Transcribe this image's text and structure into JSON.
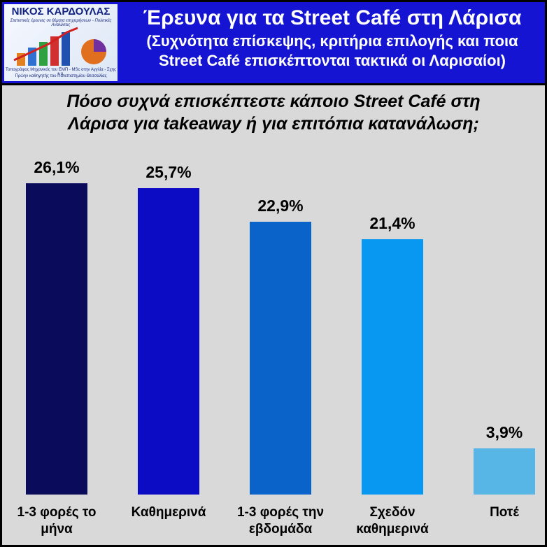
{
  "header": {
    "logo": {
      "name": "ΝΙΚΟΣ ΚΑΡΔΟΥΛΑΣ",
      "tagline": "Στατιστικές έρευνες σε θέματα επιχειρήσεων - Πολιτικές Αναλύσεις",
      "credentials": [
        "Τοπογράφος Μηχανικός του ΕΜΠ - MSc στην Αγγλία - Σχης ε.α.",
        "Πρώην καθηγητής του Πανεπιστημίου Θεσσαλίας"
      ]
    },
    "title": "Έρευνα για τα Street Café στη Λάρισα",
    "subtitle_lines": [
      "(Συχνότητα επίσκεψης, κριτήρια επιλογής και ποια",
      "Street Café επισκέπτονται τακτικά οι Λαρισαίοι)"
    ]
  },
  "chart_data": {
    "type": "bar",
    "title": "Πόσο συχνά επισκέπτεστε κάποιο Street Café στη Λάρισα για takeaway ή για επιτόπια κατανάλωση;",
    "categories": [
      "1-3 φορές το μήνα",
      "Καθημερινά",
      "1-3 φορές την εβδομάδα",
      "Σχεδόν καθημερινά",
      "Ποτέ"
    ],
    "values": [
      26.1,
      25.7,
      22.9,
      21.4,
      3.9
    ],
    "value_labels": [
      "26,1%",
      "25,7%",
      "22,9%",
      "21,4%",
      "3,9%"
    ],
    "colors": [
      "#0b0b5c",
      "#0c0cc4",
      "#0a63c8",
      "#0898f2",
      "#58b6e6"
    ]
  }
}
